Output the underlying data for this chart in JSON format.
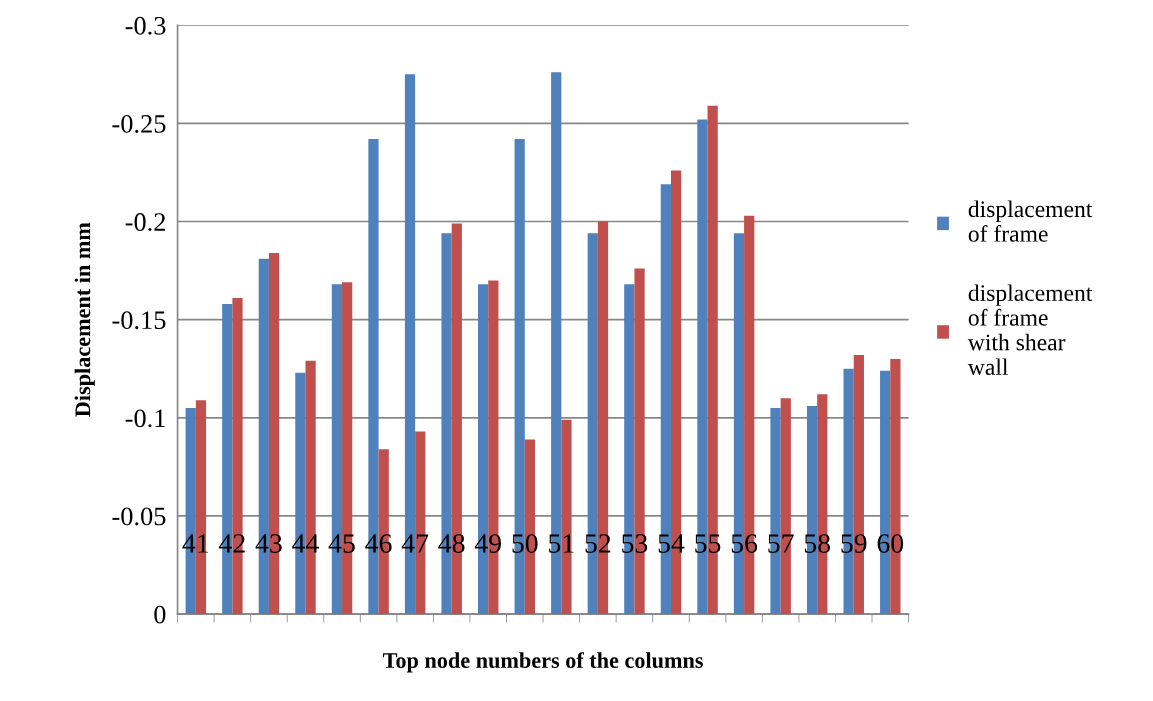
{
  "chart_data": {
    "type": "bar",
    "xlabel": "Top node numbers of the columns",
    "ylabel": "Displacement in mm",
    "categories": [
      "41",
      "42",
      "43",
      "44",
      "45",
      "46",
      "47",
      "48",
      "49",
      "50",
      "51",
      "52",
      "53",
      "54",
      "55",
      "56",
      "57",
      "58",
      "59",
      "60"
    ],
    "series": [
      {
        "name": "displacement\nof frame",
        "color": "#4f81bd",
        "values": [
          -0.105,
          -0.158,
          -0.181,
          -0.123,
          -0.168,
          -0.242,
          -0.275,
          -0.194,
          -0.168,
          -0.242,
          -0.276,
          -0.194,
          -0.168,
          -0.219,
          -0.252,
          -0.194,
          -0.105,
          -0.106,
          -0.125,
          -0.124
        ]
      },
      {
        "name": "displacement\nof frame\nwith shear\nwall",
        "color": "#c0504d",
        "values": [
          -0.109,
          -0.161,
          -0.184,
          -0.129,
          -0.169,
          -0.084,
          -0.093,
          -0.199,
          -0.17,
          -0.089,
          -0.099,
          -0.2,
          -0.176,
          -0.226,
          -0.259,
          -0.203,
          -0.11,
          -0.112,
          -0.132,
          -0.13
        ]
      }
    ],
    "ylim": [
      0,
      -0.3
    ],
    "yticks": [
      0,
      -0.05,
      -0.1,
      -0.15,
      -0.2,
      -0.25,
      -0.3
    ],
    "grid": "y",
    "legend": "right"
  }
}
